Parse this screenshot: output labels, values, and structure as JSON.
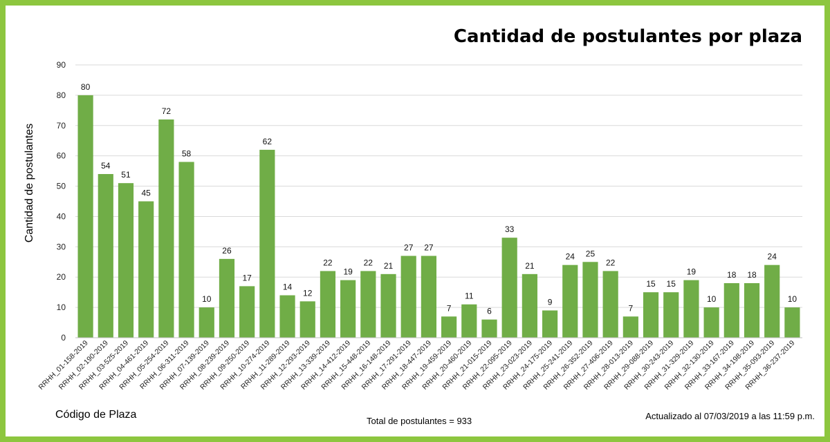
{
  "chart_data": {
    "type": "bar",
    "title": "Cantidad de postulantes por plaza",
    "xlabel": "Código de Plaza",
    "ylabel": "Cantidad de postulantes",
    "ylim": [
      0,
      90
    ],
    "yticks": [
      0,
      10,
      20,
      30,
      40,
      50,
      60,
      70,
      80,
      90
    ],
    "grid": true,
    "legend": "none",
    "bar_color": "#70ad47",
    "categories": [
      "RRHH_01-158-2019",
      "RRHH_02-190-2019",
      "RRHH_03-525-2019",
      "RRHH_04-461-2019",
      "RRHH_05-254-2019",
      "RRHH_06-311-2019",
      "RRHH_07-139-2019",
      "RRHH_08-239-2019",
      "RRHH_09-250-2019",
      "RRHH_10-274-2019",
      "RRHH_11-289-2019",
      "RRHH_12-293-2019",
      "RRHH_13-339-2019",
      "RRHH_14-412-2019",
      "RRHH_15-448-2019",
      "RRHH_16-148-2019",
      "RRHH_17-291-2019",
      "RRHH_18-447-2019",
      "RRHH_19-459-2019",
      "RRHH_20-460-2019",
      "RRHH_21-015-2019",
      "RRHH_22-095-2019",
      "RRHH_23-023-2019",
      "RRHH_24-175-2019",
      "RRHH_25-241-2019",
      "RRHH_26-352-2019",
      "RRHH_27-406-2019",
      "RRHH_28-013-2019",
      "RRHH_29-088-2019",
      "RRHH_30-243-2019",
      "RRHH_31-329-2019",
      "RRHH_32-130-2019",
      "RRHH_33-167-2019",
      "RRHH_34-198-2019",
      "RRHH_35-093-2019",
      "RRHH_36-237-2019"
    ],
    "values": [
      80,
      54,
      51,
      45,
      72,
      58,
      10,
      26,
      17,
      62,
      14,
      12,
      22,
      19,
      22,
      21,
      27,
      27,
      7,
      11,
      6,
      33,
      21,
      9,
      24,
      25,
      22,
      7,
      15,
      15,
      19,
      10,
      18,
      18,
      24,
      10
    ]
  },
  "footer": {
    "total": "Total de postulantes = 933",
    "updated": "Actualizado al 07/03/2019  a las 11:59 p.m."
  }
}
